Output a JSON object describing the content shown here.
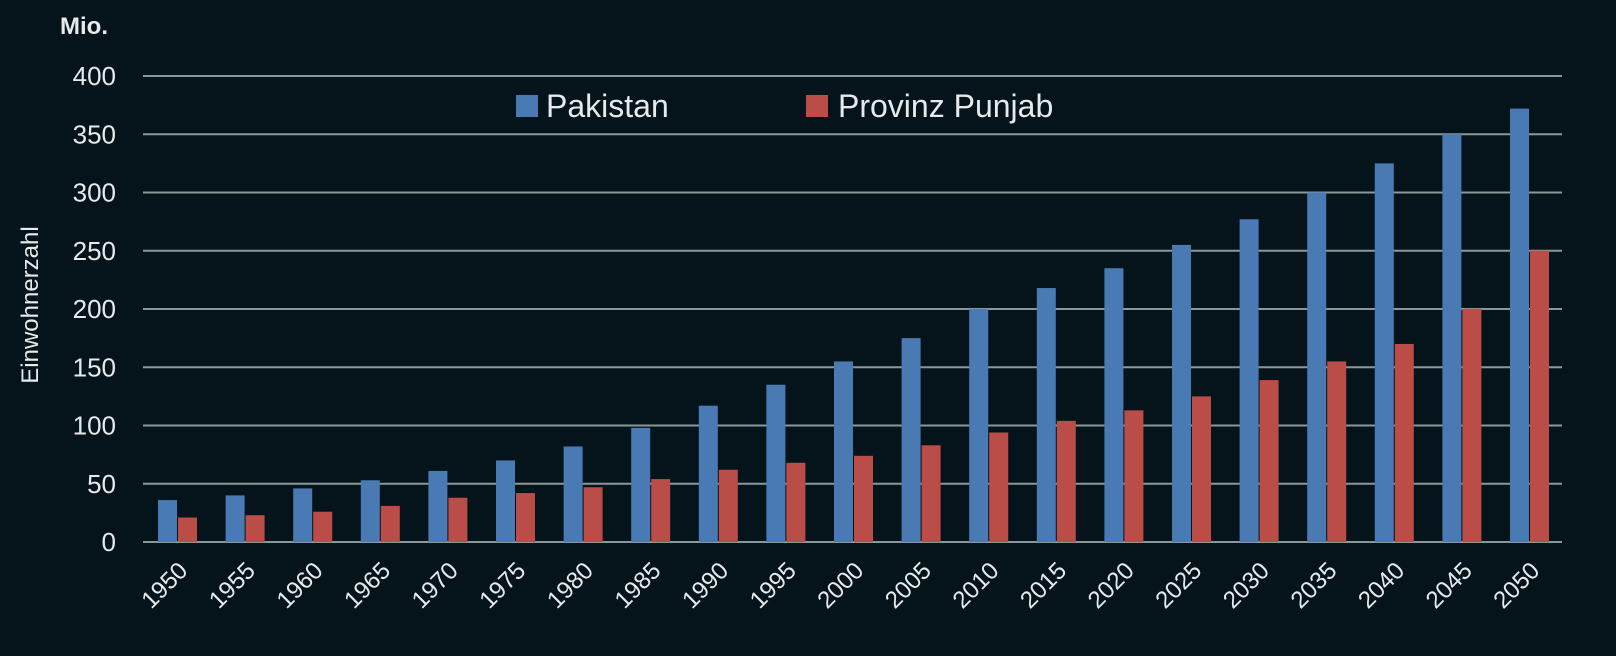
{
  "chart_data": {
    "type": "bar",
    "unit_label": "Mio.",
    "ylabel": "Einwohnerzahl",
    "xlabel": "",
    "ylim": [
      0,
      400
    ],
    "yticks": [
      0,
      50,
      100,
      150,
      200,
      250,
      300,
      350,
      400
    ],
    "grid": true,
    "legend_position": "top-center",
    "categories": [
      "1950",
      "1955",
      "1960",
      "1965",
      "1970",
      "1975",
      "1980",
      "1985",
      "1990",
      "1995",
      "2000",
      "2005",
      "2010",
      "2015",
      "2020",
      "2025",
      "2030",
      "2035",
      "2040",
      "2045",
      "2050"
    ],
    "series": [
      {
        "name": "Pakistan",
        "color": "#4a7ab3",
        "values": [
          36,
          40,
          46,
          53,
          61,
          70,
          82,
          98,
          117,
          135,
          155,
          175,
          200,
          218,
          235,
          255,
          277,
          300,
          325,
          350,
          372
        ]
      },
      {
        "name": "Provinz Punjab",
        "color": "#bb4d48",
        "values": [
          21,
          23,
          26,
          31,
          38,
          42,
          47,
          54,
          62,
          68,
          74,
          83,
          94,
          104,
          113,
          125,
          139,
          155,
          170,
          200,
          250
        ]
      }
    ]
  }
}
